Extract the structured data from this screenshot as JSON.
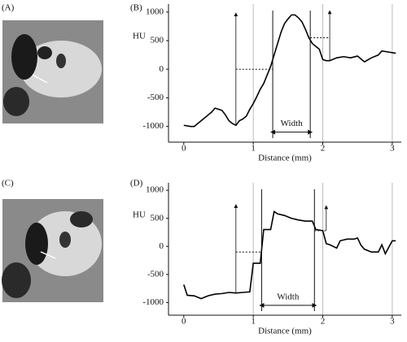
{
  "panel_labels": [
    "(A)",
    "(B)",
    "(C)",
    "(D)"
  ],
  "chart_data": [
    {
      "type": "line",
      "y_label": "HU",
      "x_label": "Distance (mm)",
      "xlim": [
        -0.22,
        3.13
      ],
      "ylim": [
        -1275,
        1140
      ],
      "xticks": [
        0,
        1,
        2,
        3
      ],
      "yticks": [
        -1000,
        -500,
        0,
        500,
        1000
      ],
      "grid": true,
      "color": "#000000",
      "x": [
        0,
        0.1,
        0.15,
        0.2,
        0.25,
        0.3,
        0.35,
        0.4,
        0.45,
        0.5,
        0.55,
        0.6,
        0.65,
        0.7,
        0.75,
        0.8,
        0.85,
        0.9,
        0.95,
        1.0,
        1.05,
        1.1,
        1.15,
        1.2,
        1.25,
        1.3,
        1.35,
        1.4,
        1.45,
        1.5,
        1.55,
        1.6,
        1.65,
        1.7,
        1.75,
        1.8,
        1.85,
        1.9,
        1.95,
        2.0,
        2.05,
        2.1,
        2.2,
        2.3,
        2.4,
        2.5,
        2.6,
        2.7,
        2.8,
        2.85,
        2.95,
        3.05
      ],
      "values": [
        -980,
        -1000,
        -1000,
        -950,
        -900,
        -850,
        -800,
        -750,
        -680,
        -700,
        -720,
        -800,
        -900,
        -950,
        -980,
        -900,
        -870,
        -820,
        -700,
        -600,
        -480,
        -350,
        -250,
        -100,
        50,
        250,
        450,
        650,
        800,
        880,
        950,
        950,
        900,
        830,
        700,
        550,
        450,
        400,
        350,
        170,
        150,
        150,
        200,
        220,
        200,
        230,
        130,
        200,
        250,
        320,
        300,
        280
      ],
      "annotation": {
        "label": "Width",
        "bounds": [
          1.28,
          1.82
        ],
        "label_y": -1100,
        "arrows": [
          {
            "x": 0.75,
            "from": -980,
            "to": 960
          },
          {
            "x": 2.1,
            "from": 150,
            "to": 1000
          }
        ],
        "dashes": [
          {
            "y": 0,
            "x": [
              0.75,
              1.28
            ]
          },
          {
            "y": 550,
            "x": [
              1.82,
              2.1
            ]
          }
        ]
      }
    },
    {
      "type": "line",
      "y_label": "HU",
      "x_label": "Distance (mm)",
      "xlim": [
        -0.22,
        3.13
      ],
      "ylim": [
        -1225,
        1133
      ],
      "xticks": [
        0,
        1,
        2,
        3
      ],
      "yticks": [
        -1000,
        -500,
        0,
        500,
        1000
      ],
      "grid": true,
      "color": "#000000",
      "x": [
        0,
        0.05,
        0.15,
        0.25,
        0.35,
        0.45,
        0.55,
        0.65,
        0.75,
        0.85,
        0.95,
        1.0,
        1.1,
        1.15,
        1.25,
        1.3,
        1.35,
        1.45,
        1.55,
        1.65,
        1.75,
        1.85,
        1.9,
        2.0,
        2.05,
        2.1,
        2.15,
        2.2,
        2.25,
        2.35,
        2.45,
        2.5,
        2.55,
        2.6,
        2.7,
        2.8,
        2.85,
        2.9,
        3.0,
        3.05
      ],
      "values": [
        -680,
        -870,
        -880,
        -930,
        -880,
        -850,
        -840,
        -820,
        -830,
        -820,
        -810,
        -300,
        -300,
        300,
        300,
        620,
        580,
        550,
        500,
        470,
        450,
        450,
        300,
        280,
        50,
        30,
        0,
        -30,
        100,
        130,
        130,
        150,
        20,
        -50,
        -100,
        -100,
        30,
        -130,
        100,
        100
      ],
      "annotation": {
        "label": "Width",
        "bounds": [
          1.12,
          1.88
        ],
        "label_y": -1050,
        "arrows": [
          {
            "x": 0.75,
            "from": -820,
            "to": 720
          },
          {
            "x": 2.05,
            "from": 280,
            "to": 700
          }
        ],
        "dashes": [
          {
            "y": -100,
            "x": [
              0.75,
              1.12
            ]
          },
          {
            "y": 280,
            "x": [
              1.88,
              2.05
            ]
          }
        ]
      }
    }
  ]
}
